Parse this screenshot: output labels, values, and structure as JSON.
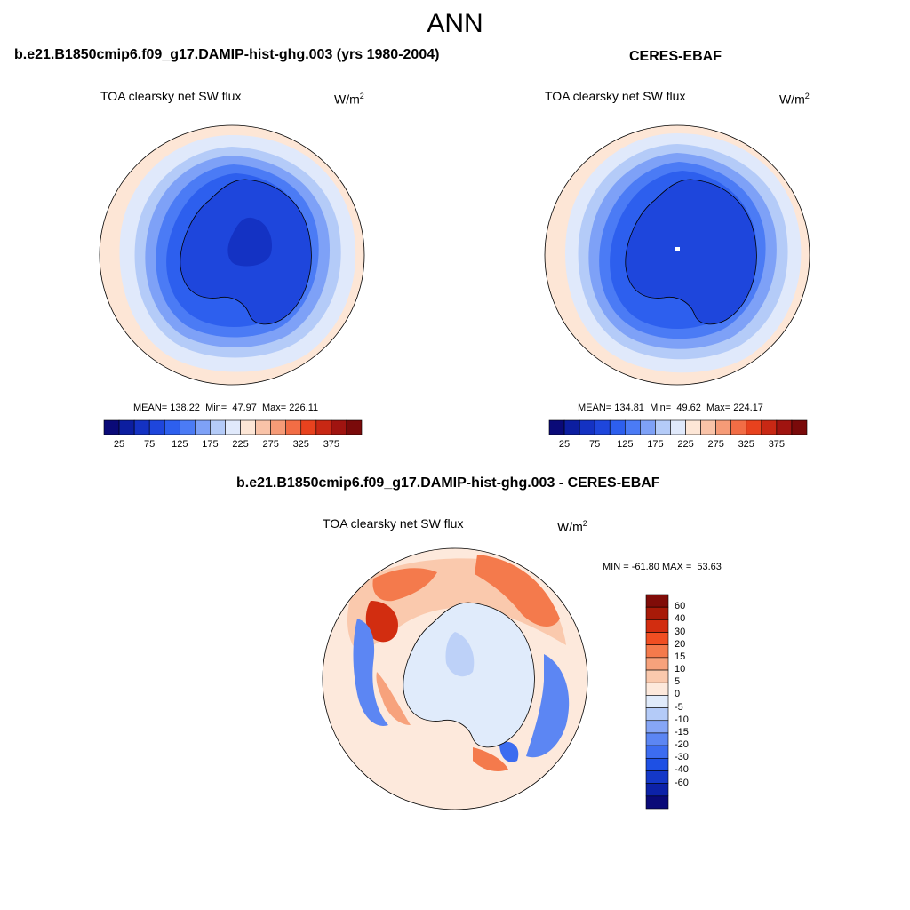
{
  "page": {
    "title": "ANN"
  },
  "panels": [
    {
      "id": "model",
      "case_title": "b.e21.B1850cmip6.f09_g17.DAMIP-hist-ghg.003 (yrs 1980-2004)",
      "variable": "TOA clearsky net SW flux",
      "units_base": "W/m",
      "units_sup": "2",
      "stats": {
        "mean_label": "MEAN=",
        "mean": "138.22",
        "min_label": "Min=",
        "min": "47.97",
        "max_label": "Max=",
        "max": "226.11"
      }
    },
    {
      "id": "obs",
      "case_title": "CERES-EBAF",
      "variable": "TOA clearsky net SW flux",
      "units_base": "W/m",
      "units_sup": "2",
      "stats": {
        "mean_label": "MEAN=",
        "mean": "134.81",
        "min_label": "Min=",
        "min": "49.62",
        "max_label": "Max=",
        "max": "224.17"
      }
    }
  ],
  "diff": {
    "case_title": "b.e21.B1850cmip6.f09_g17.DAMIP-hist-ghg.003 - CERES-EBAF",
    "variable": "TOA clearsky net SW flux",
    "units_base": "W/m",
    "units_sup": "2",
    "range_text": "MIN = -61.80 MAX =  53.63"
  },
  "colorbar_abs": {
    "colors": [
      "#0a0a78",
      "#0c1ea0",
      "#1432c3",
      "#1e46dc",
      "#2d5fee",
      "#4b7bf5",
      "#7ea1f7",
      "#b4cbf8",
      "#e0e9fb",
      "#fde6d6",
      "#f9c3a8",
      "#f69b77",
      "#f26d45",
      "#e8421e",
      "#c82814",
      "#a01410",
      "#7a0a0a"
    ],
    "tick_labels": [
      "25",
      "75",
      "125",
      "175",
      "225",
      "275",
      "325",
      "375"
    ]
  },
  "colorbar_diff": {
    "colors": [
      "#0a0a78",
      "#0c22a8",
      "#1438c8",
      "#1e50e4",
      "#3c6cf0",
      "#5c86f3",
      "#86a6f6",
      "#b4cbf8",
      "#e0ebfb",
      "#fde9dc",
      "#fac9ad",
      "#f7a27c",
      "#f47a4c",
      "#f04e22",
      "#d22d10",
      "#a81a08",
      "#800c08"
    ],
    "tick_labels": [
      "60",
      "40",
      "30",
      "20",
      "15",
      "10",
      "5",
      "0",
      "-5",
      "-10",
      "-15",
      "-20",
      "-30",
      "-40",
      "-60"
    ]
  },
  "chart_data": [
    {
      "type": "heatmap",
      "title": "TOA clearsky net SW flux",
      "subtitle": "b.e21.B1850cmip6.f09_g17.DAMIP-hist-ghg.003 (yrs 1980-2004)",
      "projection": "south polar stereographic",
      "units": "W/m2",
      "levels": [
        25,
        50,
        75,
        100,
        125,
        150,
        175,
        200,
        225,
        250,
        275,
        300,
        325,
        350,
        375
      ],
      "mean": 138.22,
      "min": 47.97,
      "max": 226.11
    },
    {
      "type": "heatmap",
      "title": "TOA clearsky net SW flux",
      "subtitle": "CERES-EBAF",
      "projection": "south polar stereographic",
      "units": "W/m2",
      "levels": [
        25,
        50,
        75,
        100,
        125,
        150,
        175,
        200,
        225,
        250,
        275,
        300,
        325,
        350,
        375
      ],
      "mean": 134.81,
      "min": 49.62,
      "max": 224.17
    },
    {
      "type": "heatmap",
      "title": "TOA clearsky net SW flux",
      "subtitle": "b.e21.B1850cmip6.f09_g17.DAMIP-hist-ghg.003 - CERES-EBAF",
      "projection": "south polar stereographic",
      "units": "W/m2",
      "levels": [
        -60,
        -40,
        -30,
        -20,
        -15,
        -10,
        -5,
        0,
        5,
        10,
        15,
        20,
        30,
        40,
        60
      ],
      "min": -61.8,
      "max": 53.63
    }
  ]
}
